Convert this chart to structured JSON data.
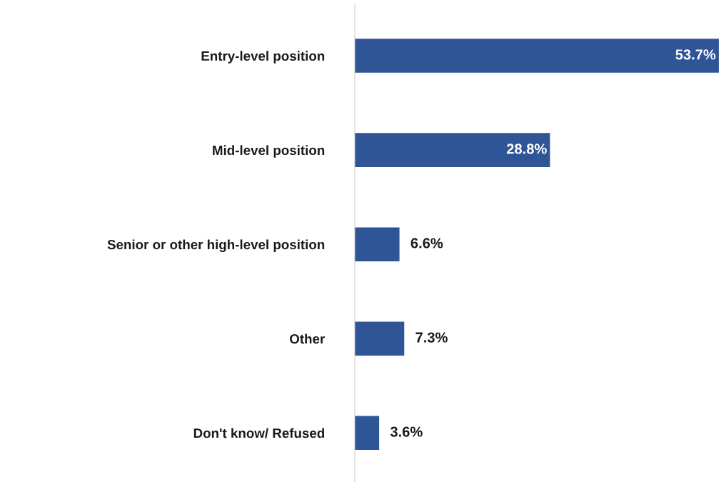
{
  "chart_data": {
    "type": "bar",
    "orientation": "horizontal",
    "categories": [
      "Entry-level position",
      "Mid-level position",
      "Senior or other high-level position",
      "Other",
      "Don't know/ Refused"
    ],
    "values": [
      53.7,
      28.8,
      6.6,
      7.3,
      3.6
    ],
    "value_labels": [
      "53.7%",
      "28.8%",
      "6.6%",
      "7.3%",
      "3.6%"
    ],
    "color": "#2f5597",
    "grid": false,
    "legend": false
  }
}
